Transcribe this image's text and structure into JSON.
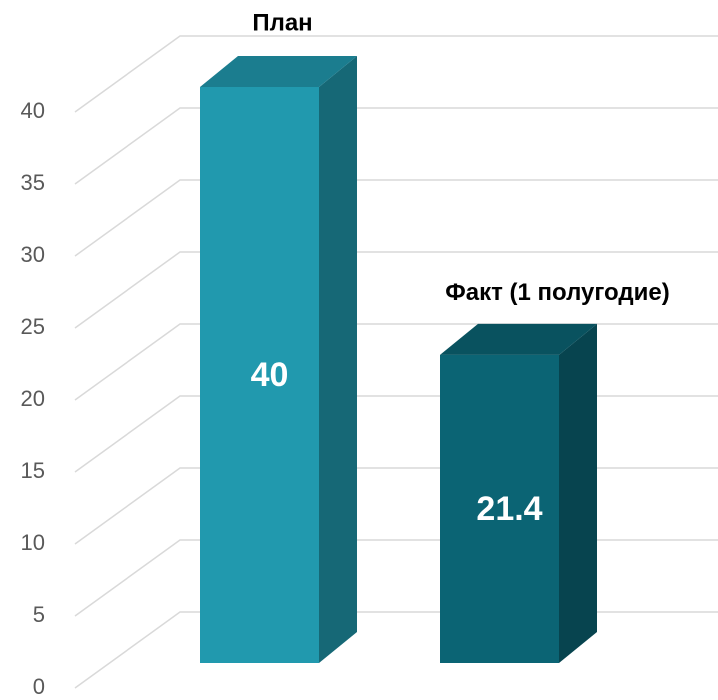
{
  "chart_data": {
    "type": "bar3d",
    "categories": [
      "План",
      "Факт (1 полугодие)"
    ],
    "values": [
      40,
      21.4
    ],
    "colors": [
      "#2199ae",
      "#0b6474"
    ],
    "ylim": [
      0,
      40
    ],
    "yticks": [
      0,
      5,
      10,
      15,
      20,
      25,
      30,
      35,
      40
    ],
    "grid": true
  }
}
